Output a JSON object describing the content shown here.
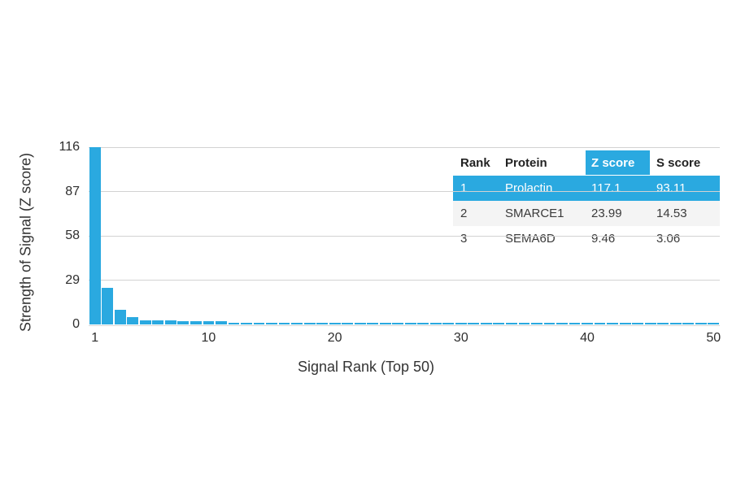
{
  "colors": {
    "accent": "#2aa9e0",
    "gridline": "#d2d2d2",
    "row_alt_bg": "#f4f4f4",
    "text": "#333333"
  },
  "chart_data": {
    "type": "bar",
    "title": "",
    "xlabel": "Signal Rank (Top 50)",
    "ylabel": "Strength of Signal (Z score)",
    "ylim": [
      0,
      116
    ],
    "yticks": [
      0,
      29,
      58,
      87,
      116
    ],
    "xticks": [
      1,
      10,
      20,
      30,
      40,
      50
    ],
    "x_range": [
      1,
      50
    ],
    "grid": true,
    "bar_color": "#2aa9e0",
    "legend": "none",
    "values": [
      117.1,
      23.99,
      9.46,
      5.0,
      2.5,
      2.45,
      2.4,
      2.35,
      2.3,
      2.25,
      1.9,
      0.8,
      0.75,
      0.7,
      1.15,
      1.15,
      1.1,
      1.1,
      1.1,
      1.1,
      1.1,
      1.05,
      1.05,
      1.05,
      1.05,
      1.05,
      1.0,
      1.0,
      1.0,
      1.0,
      1.0,
      1.0,
      1.0,
      1.0,
      1.0,
      1.0,
      1.0,
      1.0,
      1.0,
      1.0,
      1.0,
      1.0,
      1.0,
      1.0,
      1.0,
      1.0,
      1.0,
      1.0,
      1.0,
      1.0
    ]
  },
  "table": {
    "headers": [
      "Rank",
      "Protein",
      "Z score",
      "S score"
    ],
    "highlighted_header": "Z score",
    "rows": [
      {
        "rank": "1",
        "protein": "Prolactin",
        "z_score": "117.1",
        "s_score": "93.11",
        "highlighted": true
      },
      {
        "rank": "2",
        "protein": "SMARCE1",
        "z_score": "23.99",
        "s_score": "14.53",
        "highlighted": false
      },
      {
        "rank": "3",
        "protein": "SEMA6D",
        "z_score": "9.46",
        "s_score": "3.06",
        "highlighted": false
      }
    ]
  }
}
